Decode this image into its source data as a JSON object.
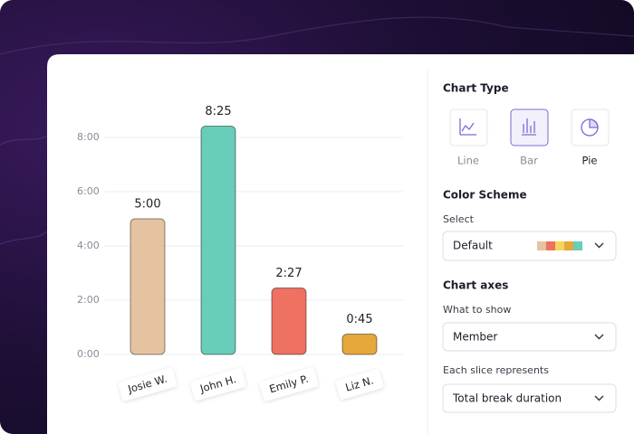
{
  "chart_data": {
    "type": "bar",
    "categories": [
      "Josie W.",
      "John H.",
      "Emily P.",
      "Liz N."
    ],
    "values": [
      5,
      8.4167,
      2.45,
      0.75
    ],
    "value_labels": [
      "5:00",
      "8:25",
      "2:27",
      "0:45"
    ],
    "colors": [
      "#e5c3a0",
      "#68cdb9",
      "#ee7161",
      "#e6a83a"
    ],
    "ylim": [
      0,
      9
    ],
    "yticks": [
      {
        "value": 0,
        "label": "0:00"
      },
      {
        "value": 2,
        "label": "2:00"
      },
      {
        "value": 4,
        "label": "4:00"
      },
      {
        "value": 6,
        "label": "6:00"
      },
      {
        "value": 8,
        "label": "8:00"
      }
    ],
    "grid": true
  },
  "panel": {
    "chart_type": {
      "title": "Chart Type",
      "options": [
        "Line",
        "Bar",
        "Pie"
      ],
      "selected": 1
    },
    "color_scheme": {
      "title": "Color Scheme",
      "field_label": "Select",
      "value": "Default",
      "swatches": [
        "#e5c3a0",
        "#ee7161",
        "#f5d55a",
        "#e6a83a",
        "#68cdb9"
      ]
    },
    "chart_axes": {
      "title": "Chart axes",
      "what_to_show": {
        "label": "What to show",
        "value": "Member"
      },
      "each_slice": {
        "label": "Each slice represents",
        "value": "Total break duration"
      }
    }
  }
}
